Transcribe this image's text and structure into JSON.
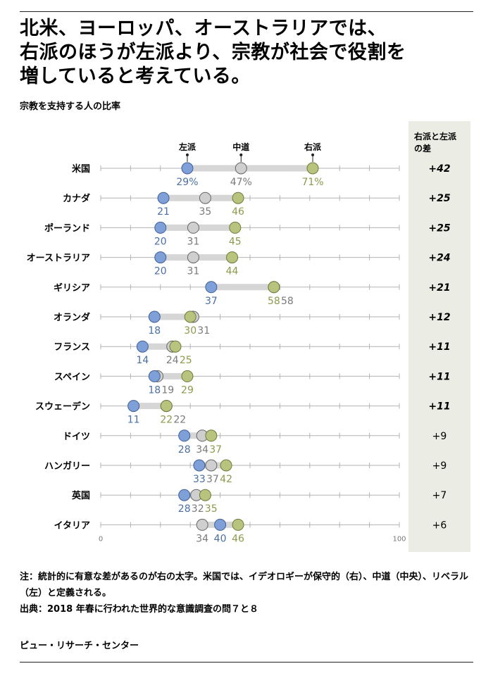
{
  "title": "北米、ヨーロッパ、オーストラリアでは、\n右派のほうが左派より、宗教が社会で役割を\n増していると考えている。",
  "subtitle": "宗教を支持する人の比率",
  "notes": {
    "note": "注：統計的に有意な差があるのが右の太字。米国では、イデオロギーが保守的（右）、中道（中央）、リベラル（左）と定義される。",
    "source": "出典：2018 年春に行われた世界的な意識調査の問７と８"
  },
  "organization": "ピュー・リサーチ・センター",
  "colors": {
    "left": "#7f9fd8",
    "center": "#cfcfcf",
    "right": "#b8c47e",
    "left_text": "#4a6fa5",
    "center_text": "#7a7a7a",
    "right_text": "#8c9a4b",
    "bar": "#d6d6d6",
    "diff_bg": "#ebede4"
  },
  "chart_data": {
    "type": "dot",
    "x_range": [
      0,
      100
    ],
    "x_ticks": [
      "0",
      "100"
    ],
    "series_labels": {
      "left": "左派",
      "center": "中道",
      "right": "右派"
    },
    "diff_header": "右派と左派\nの差",
    "rows": [
      {
        "country": "米国",
        "left": 29,
        "center": 47,
        "right": 71,
        "left_label": "29%",
        "center_label": "47%",
        "right_label": "71%",
        "diff": "+42",
        "significant": true
      },
      {
        "country": "カナダ",
        "left": 21,
        "center": 35,
        "right": 46,
        "left_label": "21",
        "center_label": "35",
        "right_label": "46",
        "diff": "+25",
        "significant": true
      },
      {
        "country": "ポーランド",
        "left": 20,
        "center": 31,
        "right": 45,
        "left_label": "20",
        "center_label": "31",
        "right_label": "45",
        "diff": "+25",
        "significant": true
      },
      {
        "country": "オーストラリア",
        "left": 20,
        "center": 31,
        "right": 44,
        "left_label": "20",
        "center_label": "31",
        "right_label": "44",
        "diff": "+24",
        "significant": true
      },
      {
        "country": "ギリシア",
        "left": 37,
        "center": 58,
        "right": 58,
        "left_label": "37",
        "center_label": "58",
        "right_label": "58",
        "diff": "+21",
        "significant": true
      },
      {
        "country": "オランダ",
        "left": 18,
        "center": 31,
        "right": 30,
        "left_label": "18",
        "center_label": "31",
        "right_label": "30",
        "diff": "+12",
        "significant": true
      },
      {
        "country": "フランス",
        "left": 14,
        "center": 24,
        "right": 25,
        "left_label": "14",
        "center_label": "24",
        "right_label": "25",
        "diff": "+11",
        "significant": true
      },
      {
        "country": "スペイン",
        "left": 18,
        "center": 19,
        "right": 29,
        "left_label": "18",
        "center_label": "19",
        "right_label": "29",
        "diff": "+11",
        "significant": true
      },
      {
        "country": "スウェーデン",
        "left": 11,
        "center": 22,
        "right": 22,
        "left_label": "11",
        "center_label": "22",
        "right_label": "22",
        "diff": "+11",
        "significant": true
      },
      {
        "country": "ドイツ",
        "left": 28,
        "center": 34,
        "right": 37,
        "left_label": "28",
        "center_label": "34",
        "right_label": "37",
        "diff": "+9",
        "significant": false
      },
      {
        "country": "ハンガリー",
        "left": 33,
        "center": 37,
        "right": 42,
        "left_label": "33",
        "center_label": "37",
        "right_label": "42",
        "diff": "+9",
        "significant": false
      },
      {
        "country": "英国",
        "left": 28,
        "center": 32,
        "right": 35,
        "left_label": "28",
        "center_label": "32",
        "right_label": "35",
        "diff": "+7",
        "significant": false
      },
      {
        "country": "イタリア",
        "left": 40,
        "center": 34,
        "right": 46,
        "left_label": "40",
        "center_label": "34",
        "right_label": "46",
        "diff": "+6",
        "significant": false
      }
    ]
  }
}
